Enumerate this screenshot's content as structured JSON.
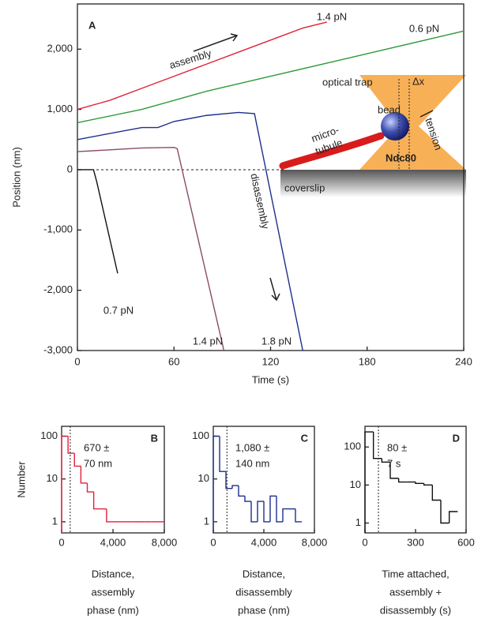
{
  "chart_data": [
    {
      "type": "line",
      "panel": "A",
      "xlabel": "Time (s)",
      "ylabel": "Position (nm)",
      "xlim": [
        0,
        240
      ],
      "xticks": [
        0,
        60,
        120,
        180,
        240
      ],
      "ylim": [
        -3000,
        2750
      ],
      "yticks": [
        {
          "value": -3000,
          "label": "-3,000"
        },
        {
          "value": -2000,
          "label": "-2,000"
        },
        {
          "value": -1000,
          "label": "-1,000"
        },
        0,
        {
          "value": 1000,
          "label": "1,000"
        },
        {
          "value": 2000,
          "label": "2,000"
        }
      ],
      "series": [
        {
          "name": "1.4 pN",
          "color": "#e0203a",
          "x": [
            0,
            20,
            40,
            60,
            80,
            100,
            120,
            140,
            155
          ],
          "values": [
            1000,
            1150,
            1350,
            1550,
            1750,
            1950,
            2150,
            2350,
            2450
          ]
        },
        {
          "name": "0.6 pN",
          "color": "#2e9a3a",
          "x": [
            0,
            40,
            80,
            120,
            160,
            200,
            240
          ],
          "values": [
            780,
            1000,
            1300,
            1550,
            1800,
            2050,
            2300
          ]
        },
        {
          "name": "1.8 pN",
          "color": "#1d2f8c",
          "x": [
            0,
            40,
            50,
            60,
            80,
            100,
            110,
            140
          ],
          "values": [
            500,
            700,
            700,
            800,
            900,
            950,
            930,
            -3000
          ]
        },
        {
          "name": "1.4 pN",
          "color": "#8a4a6a",
          "x": [
            0,
            20,
            40,
            60,
            62,
            91
          ],
          "values": [
            300,
            330,
            360,
            370,
            350,
            -3000
          ]
        },
        {
          "name": "0.7 pN",
          "color": "#111111",
          "x": [
            0,
            10,
            12,
            25
          ],
          "values": [
            0,
            0,
            -200,
            -1720
          ]
        }
      ],
      "annotations": [
        "assembly",
        "disassembly",
        "optical trap",
        "bead",
        "micro-",
        "tubule",
        "Ndc80",
        "coverslip",
        "tension",
        "Δx"
      ]
    },
    {
      "type": "histogram",
      "panel": "B",
      "ylabel": "Number",
      "xlabel": [
        "Distance,",
        "assembly",
        "phase (nm)"
      ],
      "log_y": true,
      "xlim": [
        0,
        8000
      ],
      "xticks": [
        0,
        {
          "value": 4000,
          "label": "4,000"
        },
        {
          "value": 8000,
          "label": "8,000"
        }
      ],
      "ylim": [
        0.55,
        170
      ],
      "yticks": [
        1,
        10,
        100
      ],
      "color": "#e0203a",
      "bins": [
        0,
        500,
        1000,
        1500,
        2000,
        2500,
        3000,
        3500,
        4000,
        4500,
        5000,
        5500,
        6000,
        6500,
        7000,
        7500,
        8000
      ],
      "values": [
        100,
        40,
        20,
        8,
        5,
        2,
        2,
        1,
        1,
        1,
        1,
        1,
        1,
        1,
        1,
        1
      ],
      "reference_x": 670,
      "annotation": [
        "670 ±",
        "70 nm"
      ]
    },
    {
      "type": "histogram",
      "panel": "C",
      "xlabel": [
        "Distance,",
        "disassembly",
        "phase (nm)"
      ],
      "log_y": true,
      "xlim": [
        0,
        8000
      ],
      "xticks": [
        0,
        {
          "value": 4000,
          "label": "4,000"
        },
        {
          "value": 8000,
          "label": "8,000"
        }
      ],
      "ylim": [
        0.55,
        170
      ],
      "yticks": [
        1,
        10,
        100
      ],
      "color": "#1d2f8c",
      "bins": [
        0,
        500,
        1000,
        1500,
        2000,
        2500,
        3000,
        3500,
        4000,
        4500,
        5000,
        5500,
        6000,
        6500,
        7000
      ],
      "values": [
        100,
        15,
        6,
        7,
        4,
        3,
        1,
        3,
        1,
        4,
        1,
        2,
        2,
        1
      ],
      "reference_x": 1080,
      "annotation": [
        "1,080 ±",
        "140 nm"
      ]
    },
    {
      "type": "histogram",
      "panel": "D",
      "xlabel": [
        "Time attached,",
        "assembly +",
        "disassembly (s)"
      ],
      "log_y": true,
      "xlim": [
        0,
        600
      ],
      "xticks": [
        0,
        300,
        600
      ],
      "ylim": [
        0.55,
        350
      ],
      "yticks": [
        1,
        10,
        100
      ],
      "color": "#111111",
      "bins": [
        0,
        50,
        100,
        150,
        200,
        250,
        300,
        350,
        400,
        450,
        500,
        550
      ],
      "values": [
        250,
        50,
        40,
        15,
        12,
        12,
        11,
        10,
        4,
        1,
        2
      ],
      "reference_x": 80,
      "annotation": [
        "80 ±",
        "7 s"
      ]
    }
  ]
}
